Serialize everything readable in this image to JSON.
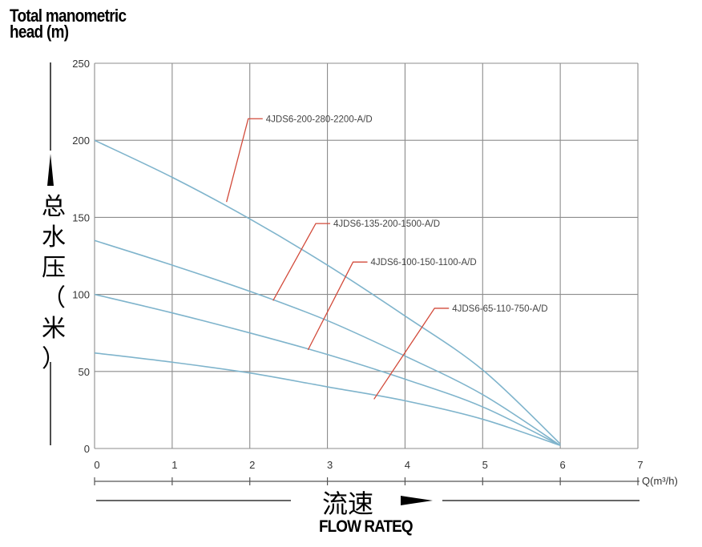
{
  "chart_data": {
    "type": "line",
    "ylabel_en": [
      "Total manometric",
      "head (m)"
    ],
    "ylabel_cn": [
      "总",
      "水",
      "压",
      "（",
      "米",
      "）"
    ],
    "xlabel_cn": "流速",
    "xlabel_en": "FLOW RATEQ",
    "x_axis_unit": "Q(m³/h)",
    "xlim": [
      0,
      7
    ],
    "ylim": [
      0,
      250
    ],
    "x_ticks": [
      "0",
      "1",
      "2",
      "3",
      "4",
      "5",
      "6",
      "7"
    ],
    "y_ticks": [
      "0",
      "50",
      "100",
      "150",
      "200",
      "250"
    ],
    "grid": true,
    "line_color": "#7fb4cc",
    "series": [
      {
        "name": "4JDS6-200-280-2200-A/D",
        "x": [
          0,
          1,
          2,
          3,
          4,
          5,
          6
        ],
        "y": [
          200,
          176,
          149,
          119,
          86,
          51,
          3
        ],
        "label_anchor": [
          1.7,
          160
        ]
      },
      {
        "name": "4JDS6-135-200-1500-A/D",
        "x": [
          0,
          1,
          2,
          3,
          4,
          5,
          6
        ],
        "y": [
          135,
          119,
          102,
          83,
          60,
          35,
          2
        ],
        "label_anchor": [
          2.3,
          96
        ]
      },
      {
        "name": "4JDS6-100-150-1100-A/D",
        "x": [
          0,
          1,
          2,
          3,
          4,
          5,
          6
        ],
        "y": [
          100,
          88,
          75,
          61,
          45,
          27,
          2
        ],
        "label_anchor": [
          2.75,
          64
        ]
      },
      {
        "name": "4JDS6-65-110-750-A/D",
        "x": [
          0,
          1,
          2,
          3,
          4,
          5,
          6
        ],
        "y": [
          62,
          56,
          49,
          40,
          31,
          19,
          2
        ],
        "label_anchor": [
          3.6,
          32
        ]
      }
    ]
  }
}
